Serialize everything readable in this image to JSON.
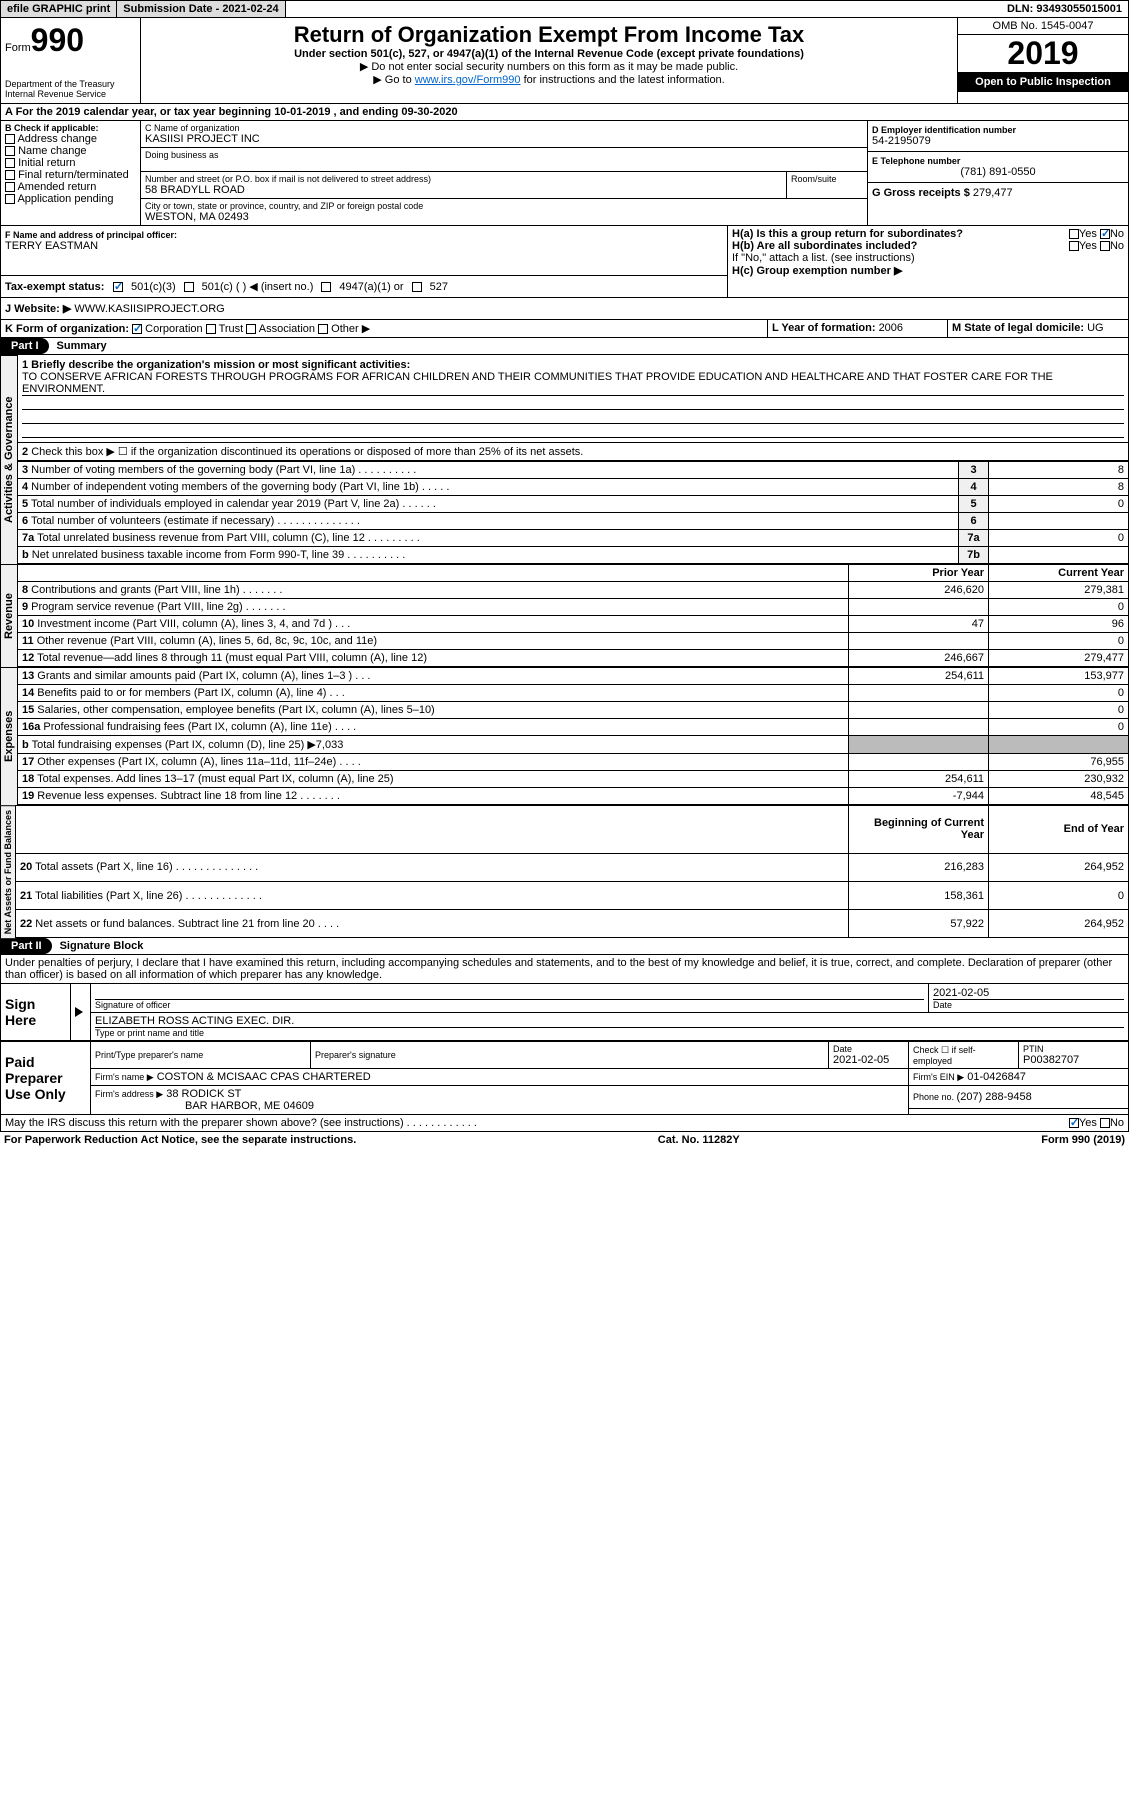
{
  "topbar": {
    "efile": "efile GRAPHIC print",
    "submission": "Submission Date - 2021-02-24",
    "dln": "DLN: 93493055015001"
  },
  "header": {
    "form_label": "Form",
    "form_no": "990",
    "dept": "Department of the Treasury\nInternal Revenue Service",
    "title": "Return of Organization Exempt From Income Tax",
    "subtitle": "Under section 501(c), 527, or 4947(a)(1) of the Internal Revenue Code (except private foundations)",
    "note1": "▶ Do not enter social security numbers on this form as it may be made public.",
    "note2_pre": "▶ Go to ",
    "note2_link": "www.irs.gov/Form990",
    "note2_post": " for instructions and the latest information.",
    "omb": "OMB No. 1545-0047",
    "year": "2019",
    "open": "Open to Public Inspection"
  },
  "row_a": "A For the 2019 calendar year, or tax year beginning 10-01-2019   , and ending 09-30-2020",
  "section_b": {
    "label": "B Check if applicable:",
    "items": [
      "Address change",
      "Name change",
      "Initial return",
      "Final return/terminated",
      "Amended return",
      "Application pending"
    ]
  },
  "section_c": {
    "name_label": "C Name of organization",
    "name": "KASIISI PROJECT INC",
    "dba_label": "Doing business as",
    "addr_label": "Number and street (or P.O. box if mail is not delivered to street address)",
    "room_label": "Room/suite",
    "addr": "58 BRADYLL ROAD",
    "city_label": "City or town, state or province, country, and ZIP or foreign postal code",
    "city": "WESTON, MA  02493"
  },
  "section_d": {
    "label": "D Employer identification number",
    "ein": "54-2195079"
  },
  "section_e": {
    "label": "E Telephone number",
    "phone": "(781) 891-0550"
  },
  "section_g": {
    "label": "G Gross receipts $ ",
    "amount": "279,477"
  },
  "section_f": {
    "label": "F  Name and address of principal officer:",
    "name": "TERRY EASTMAN"
  },
  "section_h": {
    "a": "H(a)  Is this a group return for subordinates?",
    "b": "H(b)  Are all subordinates included?",
    "note": "If \"No,\" attach a list. (see instructions)",
    "c": "H(c)  Group exemption number ▶",
    "yes": "Yes",
    "no": "No"
  },
  "tax_exempt": {
    "label": "Tax-exempt status:",
    "opt1": "501(c)(3)",
    "opt2": "501(c) (  ) ◀ (insert no.)",
    "opt3": "4947(a)(1) or",
    "opt4": "527"
  },
  "website": {
    "label": "J  Website: ▶",
    "url": "WWW.KASIISIPROJECT.ORG"
  },
  "section_k": {
    "label": "K Form of organization:",
    "corp": "Corporation",
    "trust": "Trust",
    "assoc": "Association",
    "other": "Other ▶"
  },
  "section_l": {
    "label": "L Year of formation: ",
    "year": "2006"
  },
  "section_m": {
    "label": "M State of legal domicile: ",
    "state": "UG"
  },
  "part1_label": "Part I",
  "part1_title": "Summary",
  "mission": {
    "line1": "1  Briefly describe the organization's mission or most significant activities:",
    "text": "TO CONSERVE AFRICAN FORESTS THROUGH PROGRAMS FOR AFRICAN CHILDREN AND THEIR COMMUNITIES THAT PROVIDE EDUCATION AND HEALTHCARE AND THAT FOSTER CARE FOR THE ENVIRONMENT."
  },
  "line2": "Check this box ▶ ☐  if the organization discontinued its operations or disposed of more than 25% of its net assets.",
  "gov_rows": [
    {
      "n": "3",
      "desc": "Number of voting members of the governing body (Part VI, line 1a)  .  .  .  .  .  .  .  .  .  .",
      "box": "3",
      "val": "8"
    },
    {
      "n": "4",
      "desc": "Number of independent voting members of the governing body (Part VI, line 1b)  .  .  .  .  .",
      "box": "4",
      "val": "8"
    },
    {
      "n": "5",
      "desc": "Total number of individuals employed in calendar year 2019 (Part V, line 2a)  .  .  .  .  .  .",
      "box": "5",
      "val": "0"
    },
    {
      "n": "6",
      "desc": "Total number of volunteers (estimate if necessary)  .  .  .  .  .  .  .  .  .  .  .  .  .  .",
      "box": "6",
      "val": ""
    },
    {
      "n": "7a",
      "desc": "Total unrelated business revenue from Part VIII, column (C), line 12  .  .  .  .  .  .  .  .  .",
      "box": "7a",
      "val": "0"
    },
    {
      "n": "b",
      "desc": "Net unrelated business taxable income from Form 990-T, line 39  .  .  .  .  .  .  .  .  .  .",
      "box": "7b",
      "val": ""
    }
  ],
  "prior_year": "Prior Year",
  "current_year": "Current Year",
  "rev_rows": [
    {
      "n": "8",
      "desc": "Contributions and grants (Part VIII, line 1h)  .  .  .  .  .  .  .",
      "py": "246,620",
      "cy": "279,381"
    },
    {
      "n": "9",
      "desc": "Program service revenue (Part VIII, line 2g)  .  .  .  .  .  .  .",
      "py": "",
      "cy": "0"
    },
    {
      "n": "10",
      "desc": "Investment income (Part VIII, column (A), lines 3, 4, and 7d )  .  .  .",
      "py": "47",
      "cy": "96"
    },
    {
      "n": "11",
      "desc": "Other revenue (Part VIII, column (A), lines 5, 6d, 8c, 9c, 10c, and 11e)",
      "py": "",
      "cy": "0"
    },
    {
      "n": "12",
      "desc": "Total revenue—add lines 8 through 11 (must equal Part VIII, column (A), line 12)",
      "py": "246,667",
      "cy": "279,477"
    }
  ],
  "exp_rows": [
    {
      "n": "13",
      "desc": "Grants and similar amounts paid (Part IX, column (A), lines 1–3 )  .  .  .",
      "py": "254,611",
      "cy": "153,977"
    },
    {
      "n": "14",
      "desc": "Benefits paid to or for members (Part IX, column (A), line 4)  .  .  .",
      "py": "",
      "cy": "0"
    },
    {
      "n": "15",
      "desc": "Salaries, other compensation, employee benefits (Part IX, column (A), lines 5–10)",
      "py": "",
      "cy": "0"
    },
    {
      "n": "16a",
      "desc": "Professional fundraising fees (Part IX, column (A), line 11e)  .  .  .  .",
      "py": "",
      "cy": "0"
    },
    {
      "n": "b",
      "desc": "Total fundraising expenses (Part IX, column (D), line 25) ▶7,033",
      "py": "shaded",
      "cy": "shaded"
    },
    {
      "n": "17",
      "desc": "Other expenses (Part IX, column (A), lines 11a–11d, 11f–24e)  .  .  .  .",
      "py": "",
      "cy": "76,955"
    },
    {
      "n": "18",
      "desc": "Total expenses. Add lines 13–17 (must equal Part IX, column (A), line 25)",
      "py": "254,611",
      "cy": "230,932"
    },
    {
      "n": "19",
      "desc": "Revenue less expenses. Subtract line 18 from line 12  .  .  .  .  .  .  .",
      "py": "-7,944",
      "cy": "48,545"
    }
  ],
  "boy": "Beginning of Current Year",
  "eoy": "End of Year",
  "net_rows": [
    {
      "n": "20",
      "desc": "Total assets (Part X, line 16)  .  .  .  .  .  .  .  .  .  .  .  .  .  .",
      "py": "216,283",
      "cy": "264,952"
    },
    {
      "n": "21",
      "desc": "Total liabilities (Part X, line 26)  .  .  .  .  .  .  .  .  .  .  .  .  .",
      "py": "158,361",
      "cy": "0"
    },
    {
      "n": "22",
      "desc": "Net assets or fund balances. Subtract line 21 from line 20  .  .  .  .",
      "py": "57,922",
      "cy": "264,952"
    }
  ],
  "part2_label": "Part II",
  "part2_title": "Signature Block",
  "perjury": "Under penalties of perjury, I declare that I have examined this return, including accompanying schedules and statements, and to the best of my knowledge and belief, it is true, correct, and complete. Declaration of preparer (other than officer) is based on all information of which preparer has any knowledge.",
  "sign_here": "Sign Here",
  "sig_officer": "Signature of officer",
  "sig_date": "Date",
  "sig_date_val": "2021-02-05",
  "sig_name": "ELIZABETH ROSS ACTING EXEC. DIR.",
  "sig_name_label": "Type or print name and title",
  "paid": "Paid Preparer Use Only",
  "prep_name_label": "Print/Type preparer's name",
  "prep_sig_label": "Preparer's signature",
  "prep_date_label": "Date",
  "prep_date": "2021-02-05",
  "prep_check": "Check ☐ if self-employed",
  "ptin_label": "PTIN",
  "ptin": "P00382707",
  "firm_name_label": "Firm's name   ▶",
  "firm_name": "COSTON & MCISAAC CPAS CHARTERED",
  "firm_ein_label": "Firm's EIN ▶",
  "firm_ein": "01-0426847",
  "firm_addr_label": "Firm's address ▶",
  "firm_addr1": "38 RODICK ST",
  "firm_addr2": "BAR HARBOR, ME  04609",
  "phone_label": "Phone no. ",
  "firm_phone": "(207) 288-9458",
  "discuss": "May the IRS discuss this return with the preparer shown above? (see instructions)  .  .  .  .  .  .  .  .  .  .  .  .",
  "footer1": "For Paperwork Reduction Act Notice, see the separate instructions.",
  "footer2": "Cat. No. 11282Y",
  "footer3": "Form 990 (2019)",
  "labels": {
    "activities": "Activities & Governance",
    "revenue": "Revenue",
    "expenses": "Expenses",
    "netassets": "Net Assets or Fund Balances"
  }
}
